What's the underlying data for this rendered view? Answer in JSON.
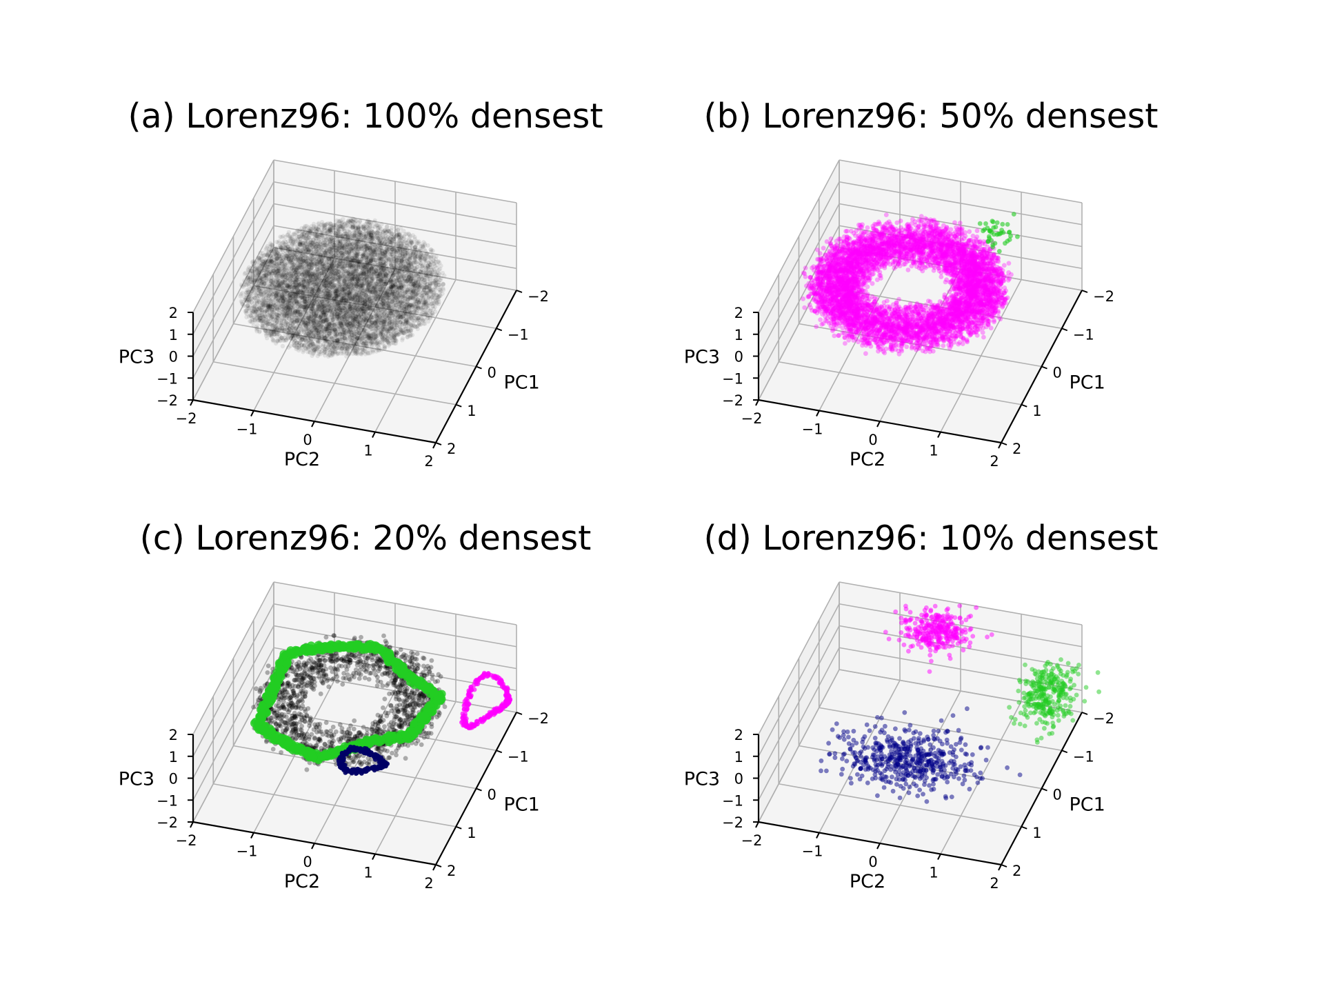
{
  "chart_data": [
    {
      "type": "scatter",
      "projection": "3d",
      "title": "(a) Lorenz96: 100% densest",
      "xlabel": "PC1",
      "ylabel": "PC2",
      "zlabel": "PC3",
      "xlim": [
        -2,
        2
      ],
      "ylim": [
        -2,
        2
      ],
      "zlim": [
        -2,
        2
      ],
      "xticks": [
        "−2",
        "−1",
        "0",
        "1",
        "2"
      ],
      "yticks": [
        "−2",
        "−1",
        "0",
        "1",
        "2"
      ],
      "zticks": [
        "−2",
        "−1",
        "0",
        "1",
        "2"
      ],
      "grid": true,
      "series": [
        {
          "color": "#000000",
          "alpha": 0.08,
          "shape": "dense-cloud",
          "center": [
            0.0,
            -0.2,
            0.5
          ],
          "radius": [
            1.7,
            1.6,
            0.9
          ],
          "count": 9000
        }
      ]
    },
    {
      "type": "scatter",
      "projection": "3d",
      "title": "(b) Lorenz96: 50% densest",
      "xlabel": "PC1",
      "ylabel": "PC2",
      "zlabel": "PC3",
      "xlim": [
        -2,
        2
      ],
      "ylim": [
        -2,
        2
      ],
      "zlim": [
        -2,
        2
      ],
      "xticks": [
        "−2",
        "−1",
        "0",
        "1",
        "2"
      ],
      "yticks": [
        "−2",
        "−1",
        "0",
        "1",
        "2"
      ],
      "zticks": [
        "−2",
        "−1",
        "0",
        "1",
        "2"
      ],
      "grid": true,
      "series": [
        {
          "color": "#ff00ff",
          "alpha": 0.35,
          "shape": "ring-cloud",
          "center": [
            0.0,
            -0.2,
            0.6
          ],
          "radius": [
            1.4,
            1.5,
            0.6
          ],
          "count": 6000
        },
        {
          "color": "#22cc22",
          "alpha": 0.6,
          "shape": "small-cluster",
          "center": [
            -1.2,
            0.9,
            1.4
          ],
          "radius": [
            0.15,
            0.15,
            0.15
          ],
          "count": 40
        }
      ]
    },
    {
      "type": "scatter",
      "projection": "3d",
      "title": "(c) Lorenz96: 20% densest",
      "xlabel": "PC1",
      "ylabel": "PC2",
      "zlabel": "PC3",
      "xlim": [
        -2,
        2
      ],
      "ylim": [
        -2,
        2
      ],
      "zlim": [
        -2,
        2
      ],
      "xticks": [
        "−2",
        "−1",
        "0",
        "1",
        "2"
      ],
      "yticks": [
        "−2",
        "−1",
        "0",
        "1",
        "2"
      ],
      "zticks": [
        "−2",
        "−1",
        "0",
        "1",
        "2"
      ],
      "grid": true,
      "series": [
        {
          "color": "#000000",
          "alpha": 0.3,
          "shape": "ring-cloud",
          "center": [
            0.0,
            -0.1,
            0.9
          ],
          "radius": [
            1.5,
            1.4,
            0.5
          ],
          "count": 1500
        },
        {
          "color": "#22cc22",
          "alpha": 0.85,
          "shape": "hexagon-loop",
          "center": [
            0.0,
            -0.1,
            0.9
          ],
          "radius": [
            1.45,
            1.45,
            0.4
          ],
          "count": 700
        },
        {
          "color": "#ff00ff",
          "alpha": 0.7,
          "shape": "arc",
          "center": [
            -0.8,
            1.9,
            0.5
          ],
          "radius": [
            0.6,
            0.3,
            0.3
          ],
          "count": 250
        },
        {
          "color": "#000066",
          "alpha": 0.9,
          "shape": "small-loop",
          "center": [
            1.1,
            0.5,
            0.4
          ],
          "radius": [
            0.25,
            0.35,
            0.15
          ],
          "count": 250
        }
      ]
    },
    {
      "type": "scatter",
      "projection": "3d",
      "title": "(d) Lorenz96: 10% densest",
      "xlabel": "PC1",
      "ylabel": "PC2",
      "zlabel": "PC3",
      "xlim": [
        -2,
        2
      ],
      "ylim": [
        -2,
        2
      ],
      "zlim": [
        -2,
        2
      ],
      "xticks": [
        "−2",
        "−1",
        "0",
        "1",
        "2"
      ],
      "yticks": [
        "−2",
        "−1",
        "0",
        "1",
        "2"
      ],
      "zticks": [
        "−2",
        "−1",
        "0",
        "1",
        "2"
      ],
      "grid": true,
      "series": [
        {
          "color": "#ff00ff",
          "alpha": 0.5,
          "shape": "cluster",
          "center": [
            -1.4,
            -0.2,
            1.7
          ],
          "radius": [
            0.25,
            0.25,
            0.2
          ],
          "count": 300
        },
        {
          "color": "#22cc22",
          "alpha": 0.5,
          "shape": "cluster",
          "center": [
            -0.6,
            1.9,
            1.2
          ],
          "radius": [
            0.35,
            0.2,
            0.45
          ],
          "count": 300
        },
        {
          "color": "#000088",
          "alpha": 0.5,
          "shape": "cluster",
          "center": [
            1.2,
            0.2,
            0.6
          ],
          "radius": [
            0.35,
            0.55,
            0.2
          ],
          "count": 500
        }
      ]
    }
  ]
}
